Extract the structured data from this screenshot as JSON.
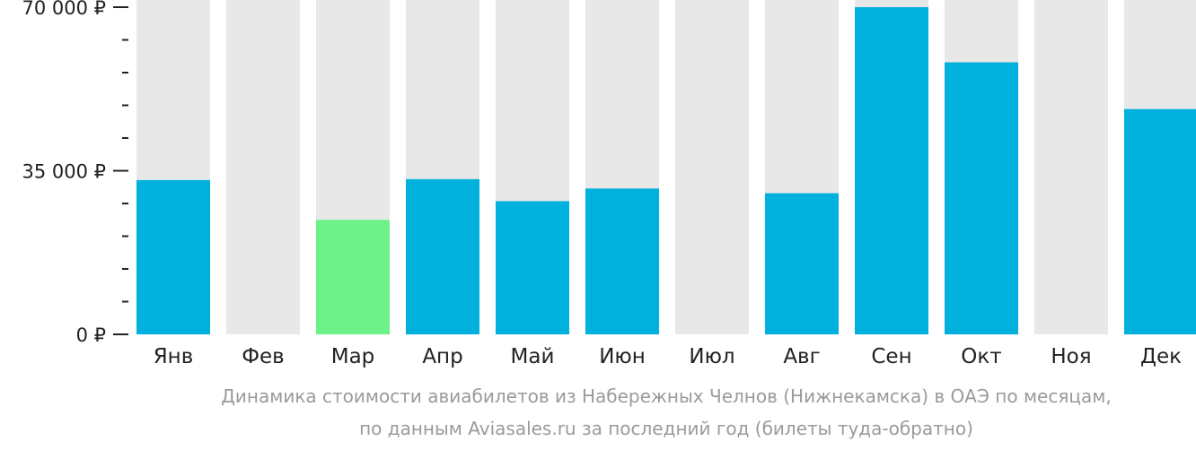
{
  "chart_data": {
    "type": "bar",
    "categories": [
      "Янв",
      "Фев",
      "Мар",
      "Апр",
      "Май",
      "Июн",
      "Июл",
      "Авг",
      "Сен",
      "Окт",
      "Ноя",
      "Дек"
    ],
    "values": [
      33000,
      null,
      24500,
      33200,
      28500,
      31200,
      null,
      30200,
      70000,
      58200,
      null,
      48200
    ],
    "highlight": [
      false,
      false,
      true,
      false,
      false,
      false,
      false,
      false,
      false,
      false,
      false,
      false
    ],
    "ylim": [
      0,
      70000
    ],
    "y_ticks": [
      {
        "value": 0,
        "label": "0 ₽"
      },
      {
        "value": 35000,
        "label": "35 000 ₽"
      },
      {
        "value": 70000,
        "label": "70 000 ₽"
      }
    ],
    "colors": {
      "bar": "#00b0dd",
      "highlight": "#6cf288",
      "background_bar": "#e8e8e8",
      "axis": "#222222"
    },
    "grid": false,
    "legend": "none"
  },
  "caption": {
    "line1": "Динамика стоимости авиабилетов из Набережных Челнов (Нижнекамска) в ОАЭ по месяцам,",
    "line2": "по данным Aviasales.ru за последний год (билеты туда-обратно)"
  }
}
